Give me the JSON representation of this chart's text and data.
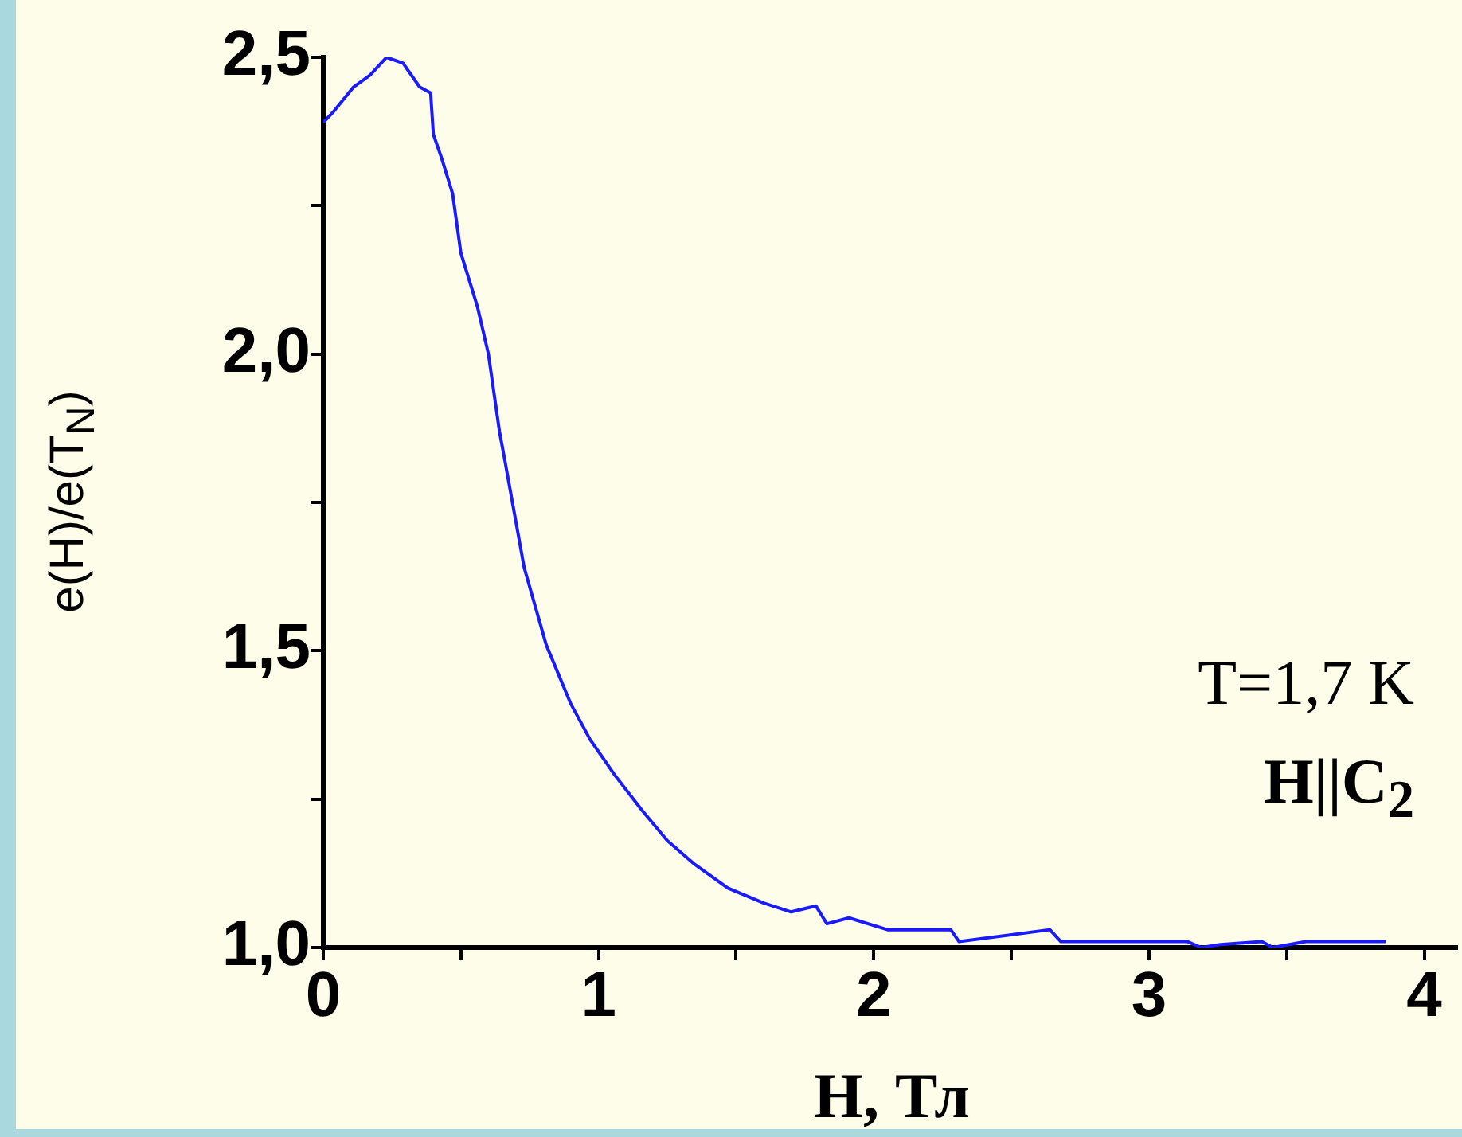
{
  "chart_data": {
    "type": "line",
    "xlabel": "H, Тл",
    "ylabel": "e(H)/e(T$_{N}$)",
    "annotations": [
      "T=1,7 K",
      "H||C$_{2}$"
    ],
    "series": [
      {
        "color": "#1a1aff",
        "x": [
          0,
          0.04,
          0.11,
          0.17,
          0.23,
          0.29,
          0.35,
          0.39,
          0.4,
          0.43,
          0.47,
          0.5,
          0.56,
          0.6,
          0.64,
          0.66,
          0.73,
          0.81,
          0.9,
          0.97,
          1.06,
          1.16,
          1.25,
          1.35,
          1.47,
          1.6,
          1.7,
          1.79,
          1.83,
          1.91,
          2.05,
          2.28,
          2.31,
          2.64,
          2.68,
          3.14,
          3.19,
          3.26,
          3.41,
          3.45,
          3.57,
          3.86
        ],
        "values": [
          2.39,
          2.41,
          2.45,
          2.47,
          2.5,
          2.49,
          2.45,
          2.44,
          2.37,
          2.33,
          2.27,
          2.17,
          2.08,
          2.0,
          1.87,
          1.82,
          1.64,
          1.51,
          1.41,
          1.35,
          1.29,
          1.23,
          1.18,
          1.14,
          1.1,
          1.075,
          1.06,
          1.07,
          1.04,
          1.05,
          1.03,
          1.03,
          1.01,
          1.03,
          1.01,
          1.01,
          1.0,
          1.005,
          1.01,
          1.0,
          1.01,
          1.01
        ]
      }
    ],
    "xlim": [
      0,
      4.12
    ],
    "ylim": [
      1,
      2.5
    ],
    "xticks": [
      0,
      {
        "value": 0.5,
        "label": null
      },
      1,
      {
        "value": 1.5,
        "label": null
      },
      2,
      {
        "value": 2.5,
        "label": null
      },
      3,
      {
        "value": 3.5,
        "label": null
      },
      4
    ],
    "yticks": [
      {
        "value": 1,
        "label": "1,0"
      },
      {
        "value": 1.25,
        "label": null
      },
      {
        "value": 1.5,
        "label": "1,5"
      },
      {
        "value": 1.75,
        "label": null
      },
      {
        "value": 2,
        "label": "2,0"
      },
      {
        "value": 2.25,
        "label": null
      },
      {
        "value": 2.5,
        "label": "2,5"
      }
    ],
    "grid": false,
    "legend": false,
    "marker": "none",
    "line_style": "solid"
  }
}
